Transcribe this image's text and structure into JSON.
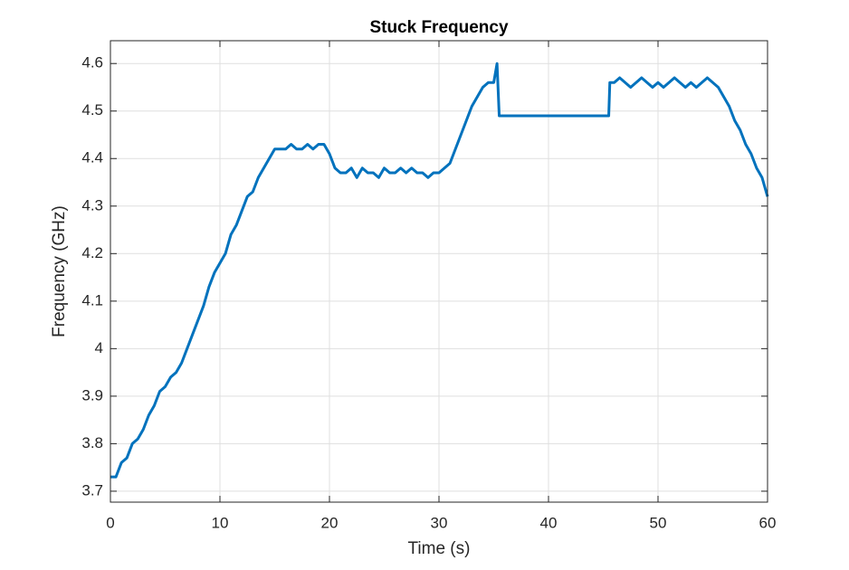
{
  "chart_data": {
    "type": "line",
    "title": "Stuck Frequency",
    "x_label": "Time (s)",
    "y_label": "Frequency (GHz)",
    "x": [
      0,
      0.5,
      1,
      1.5,
      2,
      2.5,
      3,
      3.5,
      4,
      4.5,
      5,
      5.5,
      6,
      6.5,
      7,
      7.5,
      8,
      8.5,
      9,
      9.5,
      10,
      10.5,
      11,
      11.5,
      12,
      12.5,
      13,
      13.5,
      14,
      14.5,
      15,
      15.5,
      16,
      16.5,
      17,
      17.5,
      18,
      18.5,
      19,
      19.5,
      20,
      20.5,
      21,
      21.5,
      22,
      22.5,
      23,
      23.5,
      24,
      24.5,
      25,
      25.5,
      26,
      26.5,
      27,
      27.5,
      28,
      28.5,
      29,
      29.5,
      30,
      30.5,
      31,
      31.5,
      32,
      32.5,
      33,
      33.5,
      34,
      34.5,
      35,
      35.3,
      35.5,
      45.5,
      45.6,
      46,
      46.5,
      47,
      47.5,
      48,
      48.5,
      49,
      49.5,
      50,
      50.5,
      51,
      51.5,
      52,
      52.5,
      53,
      53.5,
      54,
      54.5,
      55,
      55.5,
      56,
      56.5,
      57,
      57.5,
      58,
      58.5,
      59,
      59.5,
      60
    ],
    "values": [
      3.73,
      3.73,
      3.76,
      3.77,
      3.8,
      3.81,
      3.83,
      3.86,
      3.88,
      3.91,
      3.92,
      3.94,
      3.95,
      3.97,
      4.0,
      4.03,
      4.06,
      4.09,
      4.13,
      4.16,
      4.18,
      4.2,
      4.24,
      4.26,
      4.29,
      4.32,
      4.33,
      4.36,
      4.38,
      4.4,
      4.42,
      4.42,
      4.42,
      4.43,
      4.42,
      4.42,
      4.43,
      4.42,
      4.43,
      4.43,
      4.41,
      4.38,
      4.37,
      4.37,
      4.38,
      4.36,
      4.38,
      4.37,
      4.37,
      4.36,
      4.38,
      4.37,
      4.37,
      4.38,
      4.37,
      4.38,
      4.37,
      4.37,
      4.36,
      4.37,
      4.37,
      4.38,
      4.39,
      4.42,
      4.45,
      4.48,
      4.51,
      4.53,
      4.55,
      4.56,
      4.56,
      4.6,
      4.49,
      4.49,
      4.56,
      4.56,
      4.57,
      4.56,
      4.55,
      4.56,
      4.57,
      4.56,
      4.55,
      4.56,
      4.55,
      4.56,
      4.57,
      4.56,
      4.55,
      4.56,
      4.55,
      4.56,
      4.57,
      4.56,
      4.55,
      4.53,
      4.51,
      4.48,
      4.46,
      4.43,
      4.41,
      4.38,
      4.36,
      4.32
    ],
    "color": "#0072bd",
    "xlim": [
      0,
      60
    ],
    "xticks": [
      0,
      10,
      20,
      30,
      40,
      50,
      60
    ],
    "ylim": [
      3.677,
      4.648
    ],
    "yticks": [
      3.7,
      3.8,
      3.9,
      4,
      4.1,
      4.2,
      4.3,
      4.4,
      4.5,
      4.6
    ],
    "grid": true
  }
}
